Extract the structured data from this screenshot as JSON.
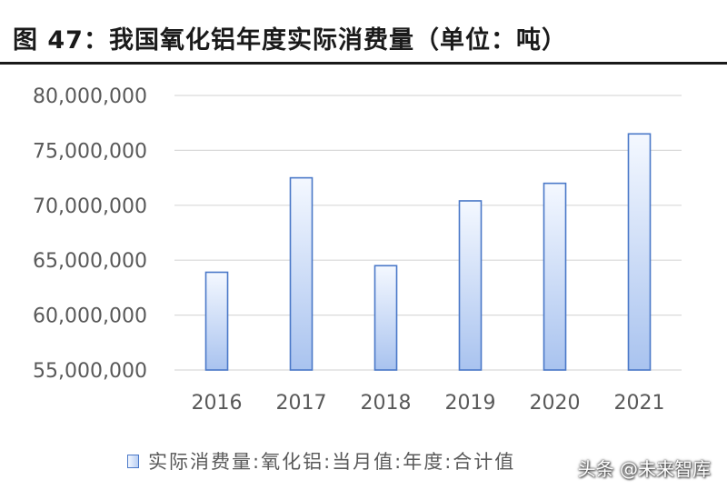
{
  "header": {
    "title": "图 47：我国氧化铝年度实际消费量（单位：吨）"
  },
  "legend": {
    "label": "实际消费量:氧化铝:当月值:年度:合计值"
  },
  "watermark": {
    "text": "头条 @未来智库"
  },
  "colors": {
    "bar_top": "#f4f8ff",
    "bar_bottom": "#a9c3ef",
    "bar_border": "#4a78c8",
    "grid": "#d9d9d9",
    "tick_text": "#595959"
  },
  "chart_data": {
    "type": "bar",
    "title": "我国氧化铝年度实际消费量（单位：吨）",
    "categories": [
      "2016",
      "2017",
      "2018",
      "2019",
      "2020",
      "2021"
    ],
    "series": [
      {
        "name": "实际消费量:氧化铝:当月值:年度:合计值",
        "values": [
          63900000,
          72500000,
          64500000,
          70400000,
          72000000,
          76500000
        ]
      }
    ],
    "ylim": [
      55000000,
      80000000
    ],
    "yticks": [
      "55,000,000",
      "60,000,000",
      "65,000,000",
      "70,000,000",
      "75,000,000",
      "80,000,000"
    ],
    "ytick_values": [
      55000000,
      60000000,
      65000000,
      70000000,
      75000000,
      80000000
    ],
    "grid": true,
    "legend_position": "bottom"
  }
}
